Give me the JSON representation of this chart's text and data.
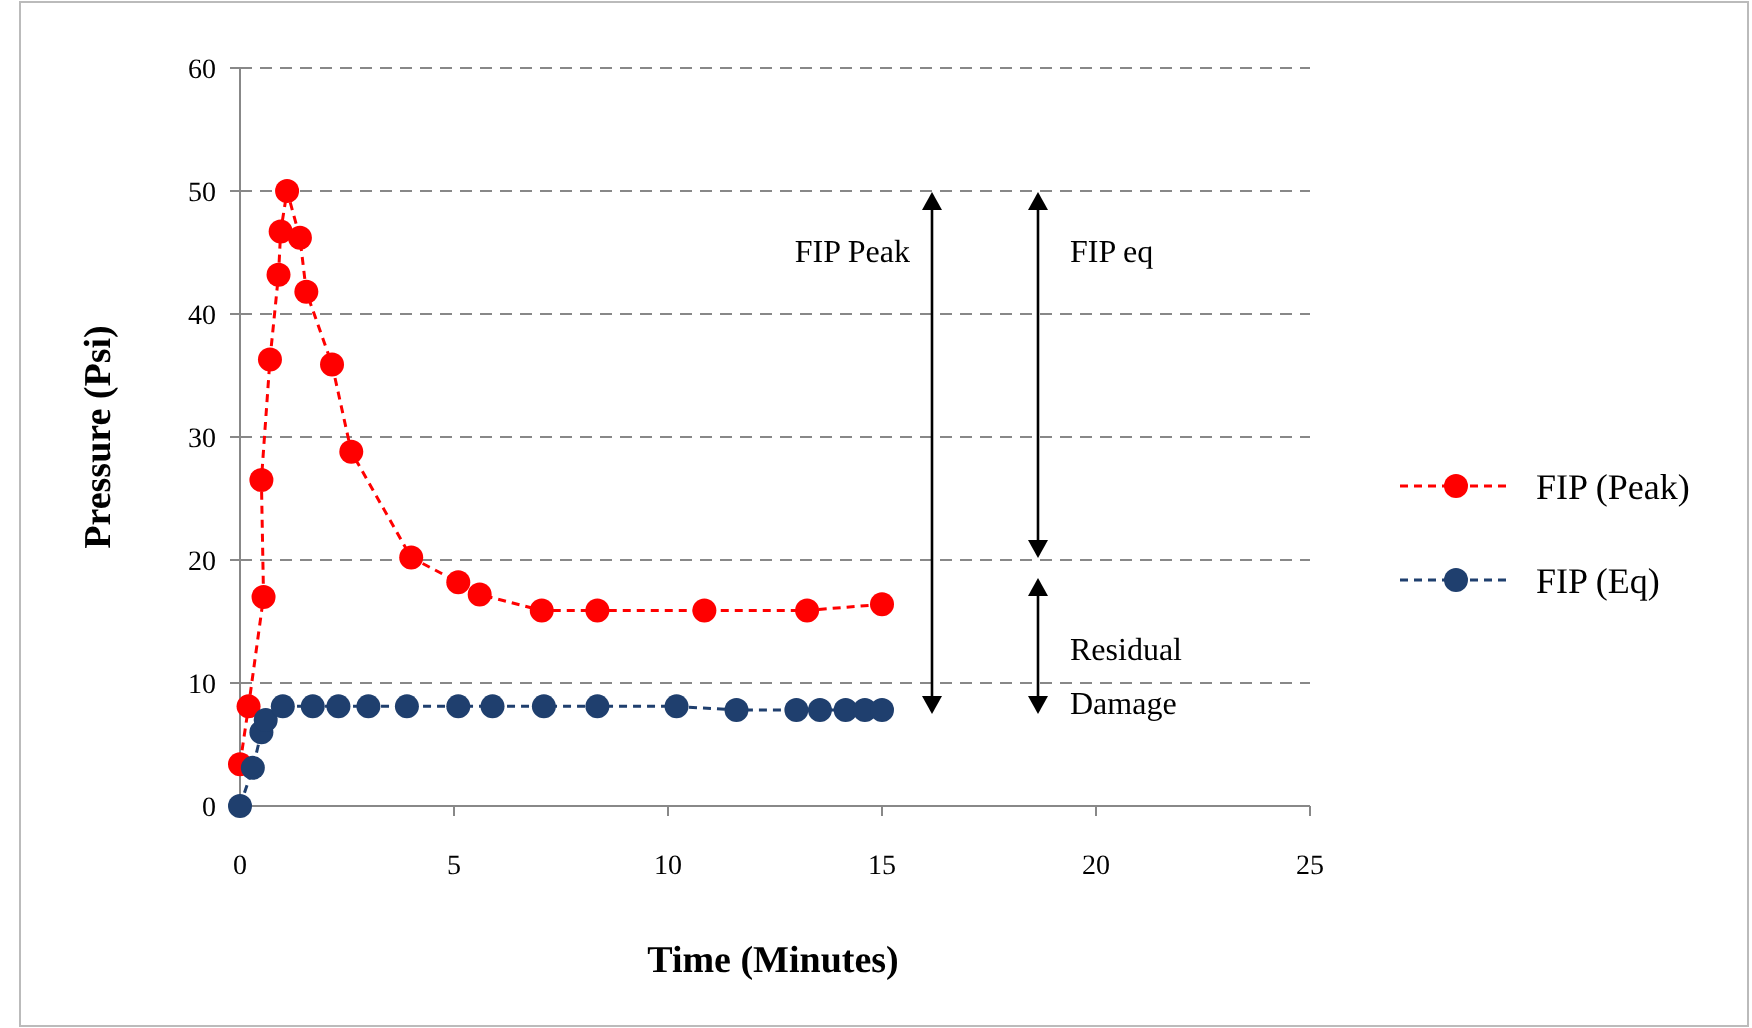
{
  "chart_data": {
    "type": "line",
    "xlabel": "Time (Minutes)",
    "ylabel": "Pressure (Psi)",
    "xlim": [
      0,
      25
    ],
    "xticks": [
      0,
      5,
      10,
      15,
      20,
      25
    ],
    "ylim": [
      0,
      60
    ],
    "yticks": [
      0,
      10,
      20,
      30,
      40,
      50,
      60
    ],
    "grid": "y",
    "legend": "right",
    "marker": "circle",
    "line_style": "dashed",
    "series": [
      {
        "name": "FIP (Peak)",
        "color": "#ff0000",
        "x": [
          0,
          0.2,
          0.55,
          0.5,
          0.7,
          0.9,
          0.95,
          1.1,
          1.4,
          1.55,
          2.15,
          2.6,
          4.0,
          5.1,
          5.6,
          7.05,
          8.35,
          10.85,
          13.25,
          15.0
        ],
        "values": [
          3.4,
          8.1,
          17,
          26.5,
          36.3,
          43.2,
          46.7,
          50,
          46.2,
          41.8,
          35.9,
          28.8,
          20.2,
          18.2,
          17.2,
          15.9,
          15.9,
          15.9,
          15.9,
          16.4
        ]
      },
      {
        "name": "FIP (Eq)",
        "color": "#1f3f6e",
        "x": [
          0,
          0.3,
          0.5,
          0.6,
          1.0,
          1.7,
          2.3,
          3.0,
          3.9,
          5.1,
          5.9,
          7.1,
          8.35,
          10.2,
          11.6,
          13.0,
          13.55,
          14.15,
          14.6,
          15.0
        ],
        "values": [
          0,
          3.1,
          6,
          7,
          8.1,
          8.1,
          8.1,
          8.1,
          8.1,
          8.1,
          8.1,
          8.1,
          8.1,
          8.1,
          7.8,
          7.8,
          7.8,
          7.8,
          7.8,
          7.8
        ]
      }
    ],
    "annotations": [
      "FIP Peak",
      "FIP eq",
      "Residual Damage"
    ]
  }
}
